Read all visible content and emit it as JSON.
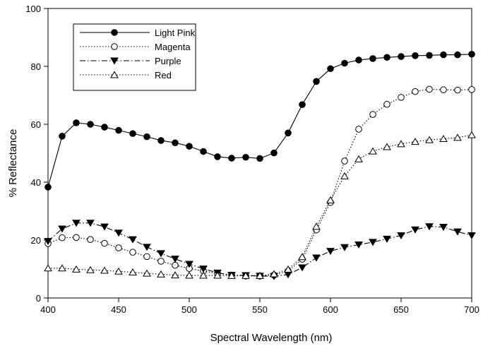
{
  "chart_data": {
    "type": "line",
    "title": "",
    "xlabel": "Spectral Wavelength (nm)",
    "ylabel": "% Reflectance",
    "xlim": [
      400,
      700
    ],
    "ylim": [
      0,
      100
    ],
    "xticks": [
      400,
      450,
      500,
      550,
      600,
      650,
      700
    ],
    "yticks": [
      0,
      20,
      40,
      60,
      80,
      100
    ],
    "xtick_labels": [
      "400",
      "450",
      "500",
      "550",
      "600",
      "650",
      "700"
    ],
    "ytick_labels": [
      "0",
      "20",
      "40",
      "60",
      "80",
      "100"
    ],
    "grid": false,
    "legend_position": "top-left",
    "x": [
      400,
      410,
      420,
      430,
      440,
      450,
      460,
      470,
      480,
      490,
      500,
      510,
      520,
      530,
      540,
      550,
      560,
      570,
      580,
      590,
      600,
      610,
      620,
      630,
      640,
      650,
      660,
      670,
      680,
      690,
      700
    ],
    "series": [
      {
        "name": "Light Pink",
        "marker": "filled-circle",
        "line_style": "solid",
        "values": [
          38.3,
          55.9,
          60.5,
          60.0,
          59.0,
          57.9,
          56.8,
          55.7,
          54.4,
          53.6,
          52.4,
          50.6,
          48.8,
          48.3,
          48.6,
          48.2,
          50.1,
          57.0,
          66.8,
          74.8,
          79.2,
          81.1,
          82.2,
          82.7,
          83.1,
          83.4,
          83.7,
          83.8,
          84.0,
          84.0,
          84.2
        ]
      },
      {
        "name": "Magenta",
        "marker": "open-circle",
        "line_style": "dotted",
        "values": [
          18.8,
          20.8,
          20.9,
          20.2,
          18.9,
          17.3,
          15.8,
          14.3,
          12.7,
          11.3,
          10.2,
          9.3,
          8.5,
          7.9,
          7.6,
          7.6,
          7.9,
          9.3,
          13.4,
          23.5,
          33.0,
          47.3,
          58.3,
          63.4,
          66.9,
          69.3,
          71.3,
          72.1,
          71.9,
          71.8,
          72.0
        ]
      },
      {
        "name": "Purple",
        "marker": "filled-triangle-down",
        "line_style": "dash-dot",
        "values": [
          19.6,
          23.9,
          25.9,
          25.9,
          24.6,
          22.5,
          20.2,
          17.6,
          15.4,
          13.5,
          11.7,
          10.1,
          8.7,
          7.9,
          7.8,
          7.6,
          7.5,
          8.1,
          10.5,
          13.9,
          16.2,
          17.5,
          18.4,
          19.3,
          20.4,
          21.6,
          23.6,
          24.7,
          24.5,
          22.9,
          21.6
        ]
      },
      {
        "name": "Red",
        "marker": "open-triangle-up",
        "line_style": "dotted",
        "values": [
          10.3,
          10.3,
          9.9,
          9.7,
          9.5,
          9.2,
          8.9,
          8.5,
          8.2,
          7.9,
          7.8,
          7.8,
          7.8,
          7.7,
          7.7,
          7.7,
          8.3,
          9.9,
          14.2,
          24.7,
          33.8,
          42.1,
          48.0,
          50.7,
          52.2,
          53.2,
          54.0,
          54.6,
          55.0,
          55.4,
          56.3
        ]
      }
    ]
  }
}
